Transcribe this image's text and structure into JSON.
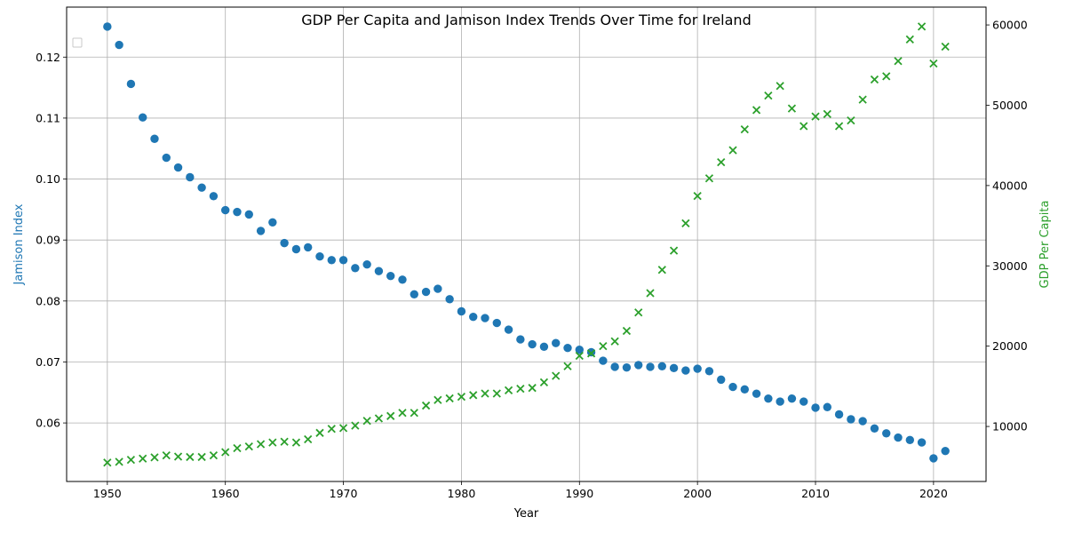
{
  "chart_data": {
    "type": "scatter",
    "title": "GDP Per Capita and Jamison Index Trends Over Time for Ireland",
    "xlabel": "Year",
    "ylabel_left": "Jamison Index",
    "ylabel_right": "GDP Per Capita",
    "xlim": [
      1946.55,
      2024.45
    ],
    "ylim_left": [
      0.0504,
      0.1282
    ],
    "ylim_right": [
      3150,
      62220
    ],
    "x_ticks": [
      1950,
      1960,
      1970,
      1980,
      1990,
      2000,
      2010,
      2020
    ],
    "y_left_ticks": [
      0.06,
      0.07,
      0.08,
      0.09,
      0.1,
      0.11,
      0.12
    ],
    "y_left_tick_labels": [
      "0.06",
      "0.07",
      "0.08",
      "0.09",
      "0.10",
      "0.11",
      "0.12"
    ],
    "y_right_ticks": [
      10000,
      20000,
      30000,
      40000,
      50000,
      60000
    ],
    "y_right_tick_labels": [
      "10000",
      "20000",
      "30000",
      "40000",
      "50000",
      "60000"
    ],
    "grid": true,
    "legend": "top-left",
    "colors": {
      "jamison": "#1f77b4",
      "gdp": "#2ca02c"
    },
    "x": [
      1950,
      1951,
      1952,
      1953,
      1954,
      1955,
      1956,
      1957,
      1958,
      1959,
      1960,
      1961,
      1962,
      1963,
      1964,
      1965,
      1966,
      1967,
      1968,
      1969,
      1970,
      1971,
      1972,
      1973,
      1974,
      1975,
      1976,
      1977,
      1978,
      1979,
      1980,
      1981,
      1982,
      1983,
      1984,
      1985,
      1986,
      1987,
      1988,
      1989,
      1990,
      1991,
      1992,
      1993,
      1994,
      1995,
      1996,
      1997,
      1998,
      1999,
      2000,
      2001,
      2002,
      2003,
      2004,
      2005,
      2006,
      2007,
      2008,
      2009,
      2010,
      2011,
      2012,
      2013,
      2014,
      2015,
      2016,
      2017,
      2018,
      2019,
      2020,
      2021
    ],
    "series": [
      {
        "name": "Jamison Index",
        "marker": "circle",
        "axis": "left",
        "values": [
          0.125,
          0.122,
          0.1156,
          0.1101,
          0.1066,
          0.1035,
          0.1019,
          0.1003,
          0.0986,
          0.0972,
          0.0949,
          0.0946,
          0.0942,
          0.0915,
          0.0929,
          0.0895,
          0.0885,
          0.0888,
          0.0873,
          0.0867,
          0.0867,
          0.0854,
          0.086,
          0.0849,
          0.0841,
          0.0835,
          0.0811,
          0.0815,
          0.082,
          0.0803,
          0.0783,
          0.0774,
          0.0772,
          0.0764,
          0.0753,
          0.0737,
          0.0729,
          0.0725,
          0.0731,
          0.0723,
          0.072,
          0.0716,
          0.0702,
          0.0692,
          0.0691,
          0.0695,
          0.0692,
          0.0693,
          0.069,
          0.0686,
          0.0689,
          0.0685,
          0.0671,
          0.0659,
          0.0655,
          0.0648,
          0.064,
          0.0635,
          0.064,
          0.0635,
          0.0625,
          0.0626,
          0.0614,
          0.0606,
          0.0603,
          0.0591,
          0.0583,
          0.0576,
          0.0572,
          0.0568,
          0.0542,
          0.0554
        ]
      },
      {
        "name": "GDP Per Capita",
        "marker": "x",
        "axis": "right",
        "values": [
          5500,
          5600,
          5850,
          6000,
          6150,
          6400,
          6250,
          6200,
          6200,
          6400,
          6800,
          7300,
          7500,
          7800,
          8000,
          8100,
          8000,
          8400,
          9200,
          9700,
          9800,
          10100,
          10700,
          11000,
          11300,
          11700,
          11700,
          12600,
          13300,
          13500,
          13700,
          13900,
          14100,
          14100,
          14500,
          14700,
          14800,
          15500,
          16300,
          17500,
          18800,
          19100,
          20000,
          20600,
          21900,
          24200,
          26600,
          29500,
          31900,
          35300,
          38700,
          40900,
          42900,
          44400,
          47000,
          49400,
          51200,
          52400,
          49600,
          47400,
          48600,
          48900,
          47400,
          48100,
          50700,
          53200,
          53600,
          55500,
          58200,
          59800,
          55200,
          57300
        ]
      }
    ]
  }
}
